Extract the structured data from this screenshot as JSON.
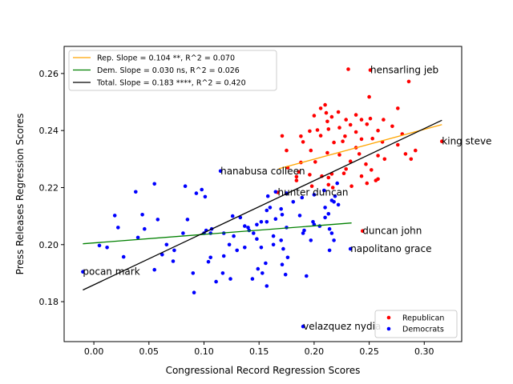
{
  "chart_data": {
    "type": "scatter",
    "xlabel": "Congressional Record Regression Scores",
    "ylabel": "Press Releases Regression Scores",
    "xlim": [
      -0.027,
      0.334
    ],
    "ylim": [
      0.166,
      0.2695
    ],
    "xticks": [
      0.0,
      0.05,
      0.1,
      0.15,
      0.2,
      0.25,
      0.3
    ],
    "xtick_labels": [
      "0.00",
      "0.05",
      "0.10",
      "0.15",
      "0.20",
      "0.25",
      "0.30"
    ],
    "yticks": [
      0.18,
      0.2,
      0.22,
      0.24,
      0.26
    ],
    "ytick_labels": [
      "0.18",
      "0.20",
      "0.22",
      "0.24",
      "0.26"
    ],
    "colors": {
      "republican": "#ff0000",
      "democrat": "#0000ff",
      "rep_fit": "#ffa500",
      "dem_fit": "#008000",
      "total_fit": "#000000"
    },
    "fit_lines": [
      {
        "label": "Rep. Slope = 0.104 **, R^2 = 0.070",
        "color": "#ffa500",
        "x": [
          0.168,
          0.316
        ],
        "y": [
          0.2266,
          0.2421
        ]
      },
      {
        "label": "Dem. Slope = 0.030 ns, R^2 = 0.026",
        "color": "#008000",
        "x": [
          -0.01,
          0.234
        ],
        "y": [
          0.2003,
          0.2076
        ]
      },
      {
        "label": "Total. Slope = 0.183 ****, R^2 = 0.420",
        "color": "#000000",
        "x": [
          -0.01,
          0.316
        ],
        "y": [
          0.1841,
          0.2436
        ]
      }
    ],
    "legend_scatter": [
      {
        "label": "Republican",
        "color": "#ff0000"
      },
      {
        "label": "Democrats",
        "color": "#0000ff"
      }
    ],
    "annotations": [
      {
        "text": "hensarling jeb",
        "x": 0.251,
        "y": 0.2612
      },
      {
        "text": "king steve",
        "x": 0.316,
        "y": 0.2362
      },
      {
        "text": "hanabusa colleen",
        "x": 0.115,
        "y": 0.2258
      },
      {
        "text": "hunter duncan",
        "x": 0.167,
        "y": 0.2183
      },
      {
        "text": "duncan john",
        "x": 0.244,
        "y": 0.2048
      },
      {
        "text": "napolitano grace",
        "x": 0.233,
        "y": 0.1985
      },
      {
        "text": "pocan mark",
        "x": -0.01,
        "y": 0.1905
      },
      {
        "text": "velazquez nydia",
        "x": 0.19,
        "y": 0.1713
      }
    ],
    "series": [
      {
        "name": "Republican",
        "color": "#ff0000",
        "points": [
          [
            0.251,
            0.2612
          ],
          [
            0.316,
            0.2362
          ],
          [
            0.244,
            0.2048
          ],
          [
            0.231,
            0.2615
          ],
          [
            0.286,
            0.2572
          ],
          [
            0.25,
            0.2518
          ],
          [
            0.276,
            0.2478
          ],
          [
            0.21,
            0.249
          ],
          [
            0.206,
            0.2478
          ],
          [
            0.211,
            0.2462
          ],
          [
            0.222,
            0.2465
          ],
          [
            0.238,
            0.2455
          ],
          [
            0.216,
            0.2448
          ],
          [
            0.2,
            0.2452
          ],
          [
            0.212,
            0.2432
          ],
          [
            0.229,
            0.2438
          ],
          [
            0.243,
            0.2438
          ],
          [
            0.251,
            0.2442
          ],
          [
            0.263,
            0.2438
          ],
          [
            0.248,
            0.2422
          ],
          [
            0.233,
            0.242
          ],
          [
            0.223,
            0.241
          ],
          [
            0.213,
            0.2405
          ],
          [
            0.203,
            0.2402
          ],
          [
            0.196,
            0.2398
          ],
          [
            0.188,
            0.238
          ],
          [
            0.206,
            0.2382
          ],
          [
            0.228,
            0.238
          ],
          [
            0.238,
            0.2395
          ],
          [
            0.258,
            0.24
          ],
          [
            0.271,
            0.2415
          ],
          [
            0.28,
            0.2388
          ],
          [
            0.171,
            0.2381
          ],
          [
            0.19,
            0.236
          ],
          [
            0.218,
            0.2358
          ],
          [
            0.226,
            0.2362
          ],
          [
            0.243,
            0.237
          ],
          [
            0.253,
            0.2372
          ],
          [
            0.262,
            0.236
          ],
          [
            0.276,
            0.235
          ],
          [
            0.283,
            0.2318
          ],
          [
            0.292,
            0.233
          ],
          [
            0.175,
            0.233
          ],
          [
            0.197,
            0.233
          ],
          [
            0.212,
            0.2322
          ],
          [
            0.223,
            0.2315
          ],
          [
            0.241,
            0.2318
          ],
          [
            0.258,
            0.2312
          ],
          [
            0.264,
            0.23
          ],
          [
            0.288,
            0.23
          ],
          [
            0.188,
            0.2288
          ],
          [
            0.201,
            0.229
          ],
          [
            0.233,
            0.2292
          ],
          [
            0.247,
            0.2282
          ],
          [
            0.252,
            0.2262
          ],
          [
            0.176,
            0.227
          ],
          [
            0.186,
            0.2255
          ],
          [
            0.196,
            0.2245
          ],
          [
            0.207,
            0.224
          ],
          [
            0.216,
            0.2248
          ],
          [
            0.227,
            0.225
          ],
          [
            0.243,
            0.224
          ],
          [
            0.258,
            0.223
          ],
          [
            0.184,
            0.2238
          ],
          [
            0.198,
            0.2205
          ],
          [
            0.213,
            0.221
          ],
          [
            0.217,
            0.22
          ],
          [
            0.234,
            0.2205
          ],
          [
            0.248,
            0.2215
          ],
          [
            0.184,
            0.2225
          ],
          [
            0.167,
            0.2183
          ],
          [
            0.213,
            0.2235
          ],
          [
            0.229,
            0.2265
          ],
          [
            0.238,
            0.234
          ],
          [
            0.256,
            0.2225
          ]
        ]
      },
      {
        "name": "Democrats",
        "color": "#0000ff",
        "points": [
          [
            -0.01,
            0.1905
          ],
          [
            0.19,
            0.1713
          ],
          [
            0.233,
            0.1985
          ],
          [
            0.115,
            0.2258
          ],
          [
            0.091,
            0.1832
          ],
          [
            0.055,
            0.2213
          ],
          [
            0.038,
            0.2185
          ],
          [
            0.044,
            0.2105
          ],
          [
            0.019,
            0.2102
          ],
          [
            0.022,
            0.206
          ],
          [
            0.058,
            0.2088
          ],
          [
            0.04,
            0.2025
          ],
          [
            0.005,
            0.1997
          ],
          [
            0.012,
            0.199
          ],
          [
            0.027,
            0.1957
          ],
          [
            0.062,
            0.1965
          ],
          [
            0.055,
            0.1912
          ],
          [
            0.072,
            0.1942
          ],
          [
            0.085,
            0.2088
          ],
          [
            0.083,
            0.2205
          ],
          [
            0.093,
            0.218
          ],
          [
            0.098,
            0.2193
          ],
          [
            0.101,
            0.2168
          ],
          [
            0.1,
            0.204
          ],
          [
            0.106,
            0.204
          ],
          [
            0.102,
            0.205
          ],
          [
            0.118,
            0.204
          ],
          [
            0.126,
            0.21
          ],
          [
            0.133,
            0.2095
          ],
          [
            0.14,
            0.206
          ],
          [
            0.141,
            0.205
          ],
          [
            0.127,
            0.203
          ],
          [
            0.13,
            0.198
          ],
          [
            0.123,
            0.2
          ],
          [
            0.137,
            0.199
          ],
          [
            0.145,
            0.204
          ],
          [
            0.148,
            0.207
          ],
          [
            0.152,
            0.208
          ],
          [
            0.148,
            0.202
          ],
          [
            0.157,
            0.212
          ],
          [
            0.158,
            0.217
          ],
          [
            0.16,
            0.213
          ],
          [
            0.157,
            0.208
          ],
          [
            0.163,
            0.203
          ],
          [
            0.17,
            0.2125
          ],
          [
            0.171,
            0.2105
          ],
          [
            0.175,
            0.206
          ],
          [
            0.17,
            0.2015
          ],
          [
            0.172,
            0.1985
          ],
          [
            0.176,
            0.1955
          ],
          [
            0.163,
            0.2
          ],
          [
            0.156,
            0.1935
          ],
          [
            0.153,
            0.19
          ],
          [
            0.157,
            0.1855
          ],
          [
            0.149,
            0.1915
          ],
          [
            0.144,
            0.188
          ],
          [
            0.124,
            0.188
          ],
          [
            0.117,
            0.19
          ],
          [
            0.111,
            0.187
          ],
          [
            0.106,
            0.1955
          ],
          [
            0.09,
            0.19
          ],
          [
            0.104,
            0.194
          ],
          [
            0.118,
            0.196
          ],
          [
            0.171,
            0.193
          ],
          [
            0.174,
            0.1895
          ],
          [
            0.193,
            0.189
          ],
          [
            0.197,
            0.2015
          ],
          [
            0.191,
            0.205
          ],
          [
            0.187,
            0.2102
          ],
          [
            0.199,
            0.208
          ],
          [
            0.2,
            0.207
          ],
          [
            0.205,
            0.2065
          ],
          [
            0.214,
            0.2055
          ],
          [
            0.216,
            0.204
          ],
          [
            0.218,
            0.2015
          ],
          [
            0.214,
            0.198
          ],
          [
            0.21,
            0.213
          ],
          [
            0.216,
            0.2155
          ],
          [
            0.219,
            0.217
          ],
          [
            0.221,
            0.2215
          ],
          [
            0.209,
            0.219
          ],
          [
            0.2,
            0.2175
          ],
          [
            0.189,
            0.2165
          ],
          [
            0.181,
            0.215
          ],
          [
            0.175,
            0.218
          ],
          [
            0.165,
            0.2185
          ],
          [
            0.213,
            0.2108
          ],
          [
            0.21,
            0.2095
          ],
          [
            0.19,
            0.204
          ],
          [
            0.066,
            0.2
          ],
          [
            0.107,
            0.2055
          ],
          [
            0.046,
            0.2055
          ],
          [
            0.073,
            0.198
          ],
          [
            0.081,
            0.204
          ],
          [
            0.137,
            0.2065
          ],
          [
            0.152,
            0.199
          ],
          [
            0.165,
            0.209
          ],
          [
            0.218,
            0.215
          ],
          [
            0.222,
            0.214
          ]
        ]
      }
    ]
  }
}
